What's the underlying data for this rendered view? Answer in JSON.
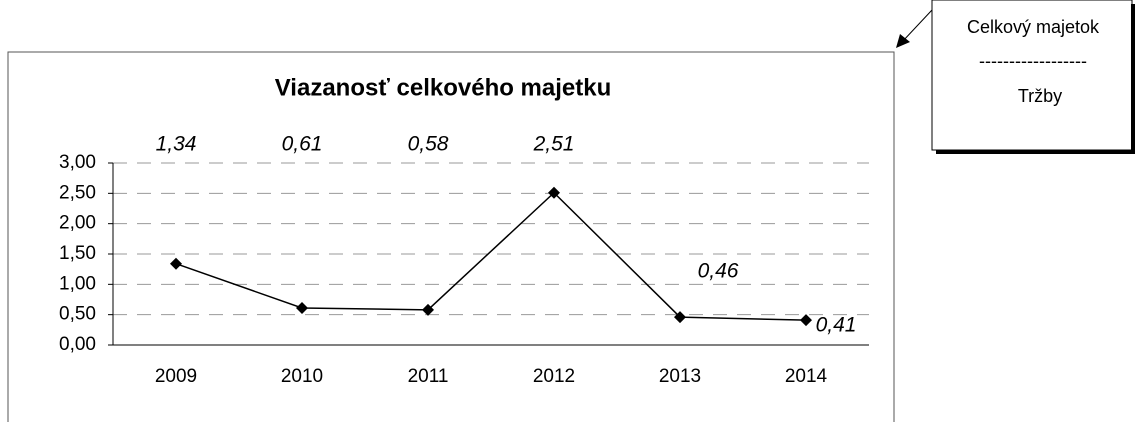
{
  "chart_data": {
    "type": "line",
    "title": "Viazanosť celkového majetku",
    "categories": [
      "2009",
      "2010",
      "2011",
      "2012",
      "2013",
      "2014"
    ],
    "series": [
      {
        "name": "Viazanosť celkového majetku",
        "color": "#000000",
        "values": [
          1.34,
          0.61,
          0.58,
          2.51,
          0.46,
          0.41
        ],
        "value_labels": [
          "1,34",
          "0,61",
          "0,58",
          "2,51",
          "0,46",
          "0,41"
        ]
      }
    ],
    "ylim": [
      0,
      3
    ],
    "yticks": [
      {
        "value": 0,
        "label": "0,00"
      },
      {
        "value": 0.5,
        "label": "0,50"
      },
      {
        "value": 1,
        "label": "1,00"
      },
      {
        "value": 1.5,
        "label": "1,50"
      },
      {
        "value": 2,
        "label": "2,00"
      },
      {
        "value": 2.5,
        "label": "2,50"
      },
      {
        "value": 3,
        "label": "3,00"
      }
    ],
    "grid": true,
    "annotations": [
      "Celkový majetok",
      "------------------",
      "Tržby"
    ]
  }
}
